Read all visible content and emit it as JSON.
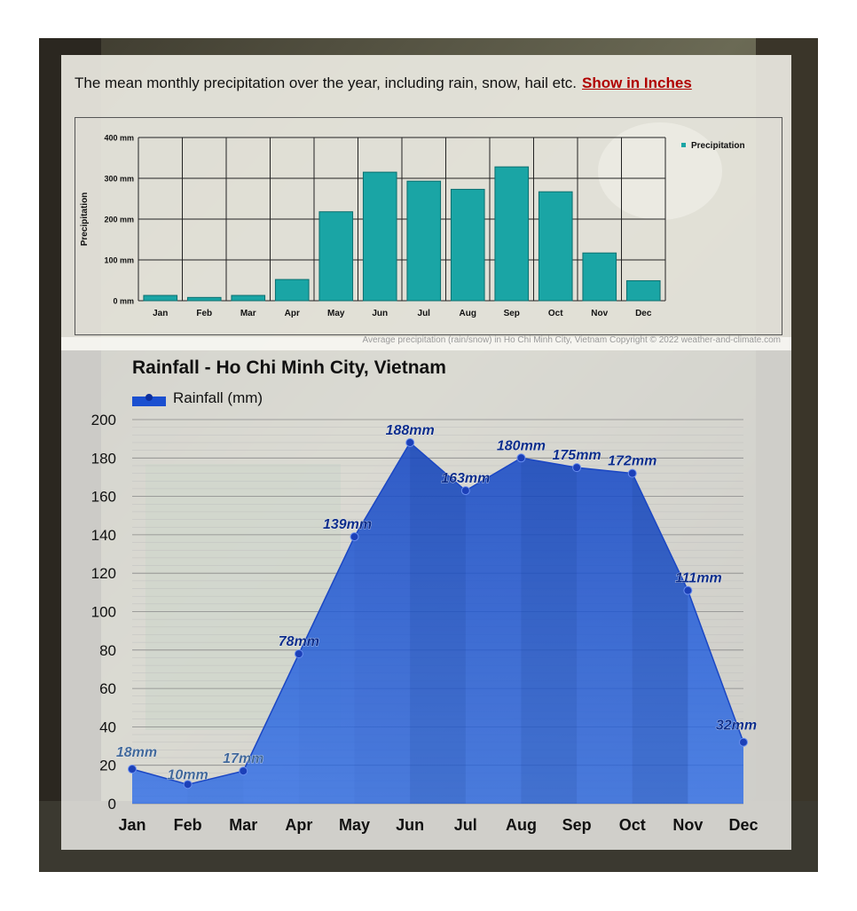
{
  "intro": {
    "text": "The mean monthly precipitation over the year, including rain, snow, hail etc.",
    "link_label": "Show in Inches"
  },
  "caption": "Average precipitation (rain/snow) in Ho Chi Minh City, Vietnam   Copyright © 2022  weather-and-climate.com",
  "chart_data": [
    {
      "type": "bar",
      "categories": [
        "Jan",
        "Feb",
        "Mar",
        "Apr",
        "May",
        "Jun",
        "Jul",
        "Aug",
        "Sep",
        "Oct",
        "Nov",
        "Dec"
      ],
      "series": [
        {
          "name": "Precipitation",
          "values": [
            13,
            8,
            13,
            52,
            218,
            315,
            293,
            273,
            328,
            267,
            117,
            49
          ]
        }
      ],
      "title": "",
      "xlabel": "",
      "ylabel": "Precipitation",
      "ylim": [
        0,
        400
      ],
      "yticks": [
        0,
        100,
        200,
        300,
        400
      ],
      "ytick_labels": [
        "0 mm",
        "100 mm",
        "200 mm",
        "300 mm",
        "400 mm"
      ],
      "grid": true,
      "legend": "top-right",
      "color": "#1aa5a5"
    },
    {
      "type": "area",
      "categories": [
        "Jan",
        "Feb",
        "Mar",
        "Apr",
        "May",
        "Jun",
        "Jul",
        "Aug",
        "Sep",
        "Oct",
        "Nov",
        "Dec"
      ],
      "series": [
        {
          "name": "Rainfall (mm)",
          "values": [
            18,
            10,
            17,
            78,
            139,
            188,
            163,
            180,
            175,
            172,
            111,
            32
          ]
        }
      ],
      "data_labels": [
        "18mm",
        "10mm",
        "17mm",
        "78mm",
        "139mm",
        "188mm",
        "163mm",
        "180mm",
        "175mm",
        "172mm",
        "111mm",
        "32mm"
      ],
      "title": "Rainfall - Ho Chi Minh City, Vietnam",
      "xlabel": "",
      "ylabel": "",
      "ylim": [
        0,
        200
      ],
      "yticks": [
        0,
        20,
        40,
        60,
        80,
        100,
        120,
        140,
        160,
        180,
        200
      ],
      "grid": true,
      "legend": "top-left",
      "color": "#1a56d6"
    }
  ]
}
